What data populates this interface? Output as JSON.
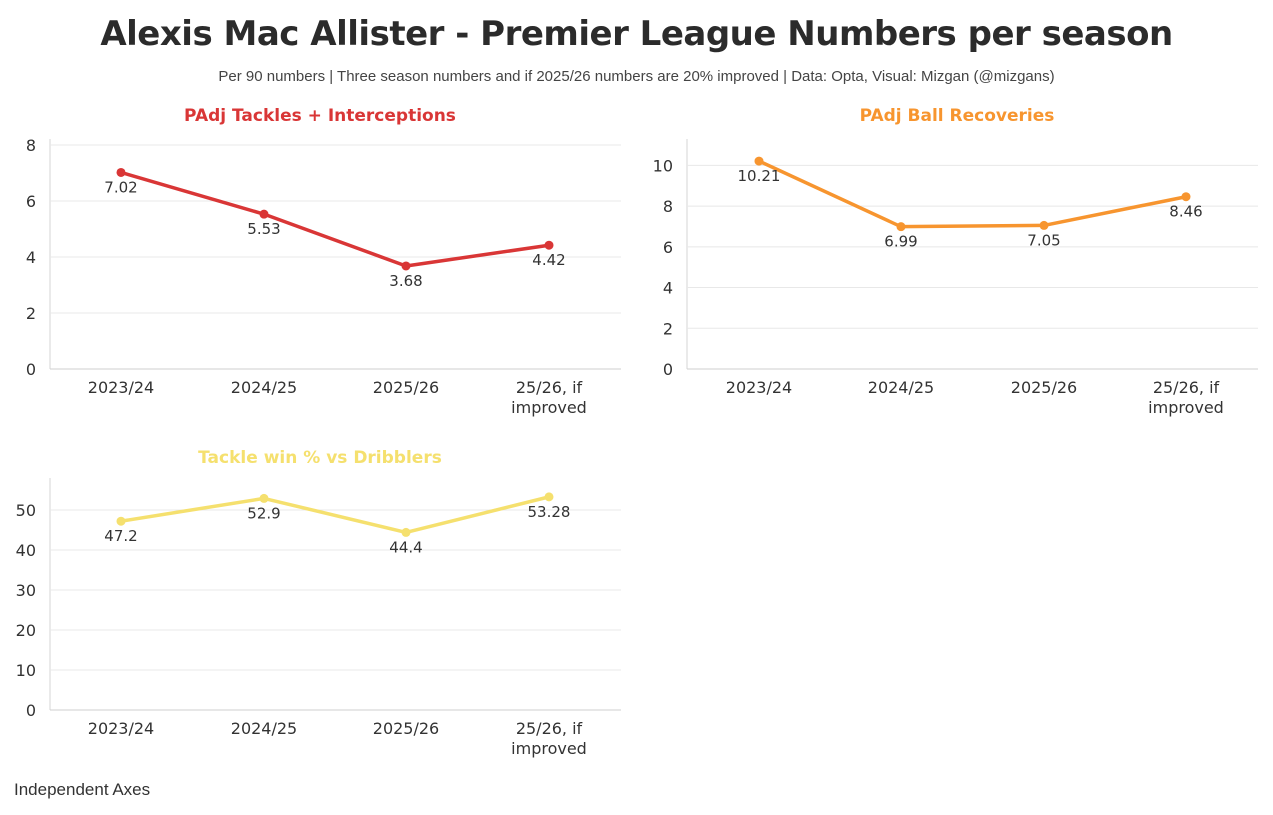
{
  "title": "Alexis Mac Allister - Premier League Numbers per season",
  "subtitle": "Per 90 numbers | Three season numbers and if 2025/26 numbers are 20% improved | Data: Opta, Visual: Mizgan (@mizgans)",
  "footer": "Independent Axes",
  "chart_data": [
    {
      "type": "line",
      "title": "PAdj Tackles + Interceptions",
      "color": "#d93636",
      "categories": [
        "2023/24",
        "2024/25",
        "2025/26",
        "25/26, if improved"
      ],
      "category_lines": [
        [
          "2023/24"
        ],
        [
          "2024/25"
        ],
        [
          "2025/26"
        ],
        [
          "25/26, if",
          "improved"
        ]
      ],
      "values": [
        7.02,
        5.53,
        3.68,
        4.42
      ],
      "value_labels": [
        "7.02",
        "5.53",
        "3.68",
        "4.42"
      ],
      "yticks": [
        0,
        2,
        4,
        6,
        8
      ],
      "ylim": [
        0,
        8
      ],
      "grid": true
    },
    {
      "type": "line",
      "title": "PAdj Ball Recoveries",
      "color": "#f7952f",
      "categories": [
        "2023/24",
        "2024/25",
        "2025/26",
        "25/26, if improved"
      ],
      "category_lines": [
        [
          "2023/24"
        ],
        [
          "2024/25"
        ],
        [
          "2025/26"
        ],
        [
          "25/26, if",
          "improved"
        ]
      ],
      "values": [
        10.21,
        6.99,
        7.05,
        8.46
      ],
      "value_labels": [
        "10.21",
        "6.99",
        "7.05",
        "8.46"
      ],
      "yticks": [
        0,
        2,
        4,
        6,
        8,
        10
      ],
      "ylim": [
        0,
        11
      ],
      "grid": true
    },
    {
      "type": "line",
      "title": "Tackle win % vs Dribblers",
      "color": "#f5e06e",
      "categories": [
        "2023/24",
        "2024/25",
        "2025/26",
        "25/26, if improved"
      ],
      "category_lines": [
        [
          "2023/24"
        ],
        [
          "2024/25"
        ],
        [
          "2025/26"
        ],
        [
          "25/26, if",
          "improved"
        ]
      ],
      "values": [
        47.2,
        52.9,
        44.4,
        53.28
      ],
      "value_labels": [
        "47.2",
        "52.9",
        "44.4",
        "53.28"
      ],
      "yticks": [
        0,
        10,
        20,
        30,
        40,
        50
      ],
      "ylim": [
        0,
        56.5
      ],
      "grid": true
    }
  ]
}
